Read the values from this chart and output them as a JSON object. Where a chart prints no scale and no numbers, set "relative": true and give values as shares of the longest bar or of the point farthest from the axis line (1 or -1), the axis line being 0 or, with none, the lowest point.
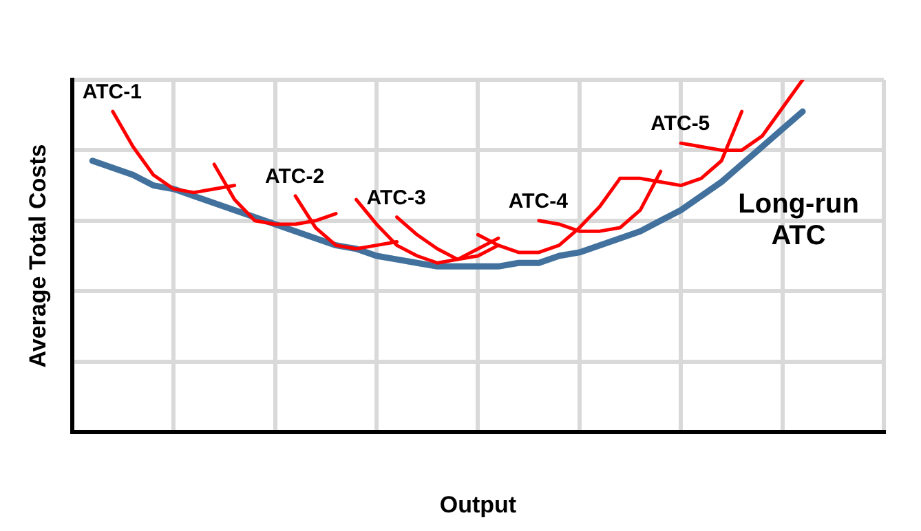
{
  "chart_data": {
    "type": "line",
    "relative": true,
    "xlabel": "Output",
    "ylabel": "Average Total Costs",
    "grid": true,
    "legend": false,
    "marker": "none",
    "line_style": "solid",
    "categories": [
      null,
      null,
      null,
      null,
      null,
      null,
      null,
      null,
      null,
      null,
      null,
      null,
      null,
      null,
      null,
      null,
      null,
      null,
      null,
      null,
      null,
      null,
      null,
      null,
      null,
      null,
      null,
      null,
      null,
      null,
      null,
      null,
      null,
      null,
      null,
      null,
      null,
      null,
      null,
      null,
      null
    ],
    "series": [
      {
        "name": "Long-run ATC",
        "color": "#41719c",
        "values": [
          null,
          0.77,
          0.75,
          0.73,
          0.7,
          0.69,
          0.67,
          0.65,
          0.63,
          0.61,
          0.59,
          0.57,
          0.55,
          0.53,
          0.52,
          0.5,
          0.49,
          0.48,
          0.47,
          0.47,
          0.47,
          0.47,
          0.48,
          0.48,
          0.5,
          0.51,
          0.53,
          0.55,
          0.57,
          0.6,
          0.63,
          0.67,
          0.71,
          0.76,
          0.81,
          0.86,
          0.91,
          null,
          null,
          null,
          null
        ]
      },
      {
        "name": "ATC-1",
        "color": "#ff0000",
        "values": [
          null,
          null,
          0.91,
          0.81,
          0.73,
          0.69,
          0.68,
          0.69,
          0.7,
          null,
          null,
          null,
          null,
          null,
          null,
          null,
          null,
          null,
          null,
          null,
          null,
          null,
          null,
          null,
          null,
          null,
          null,
          null,
          null,
          null,
          null,
          null,
          null,
          null,
          null,
          null,
          null,
          null,
          null,
          null,
          null
        ]
      },
      {
        "color": "#ff0000",
        "values": [
          null,
          null,
          null,
          null,
          null,
          null,
          null,
          0.76,
          0.66,
          0.6,
          0.59,
          0.59,
          0.6,
          0.62,
          null,
          null,
          null,
          null,
          null,
          null,
          null,
          null,
          null,
          null,
          null,
          null,
          null,
          null,
          null,
          null,
          null,
          null,
          null,
          null,
          null,
          null,
          null,
          null,
          null,
          null,
          null
        ]
      },
      {
        "name": "ATC-2",
        "color": "#ff0000",
        "values": [
          null,
          null,
          null,
          null,
          null,
          null,
          null,
          null,
          null,
          null,
          null,
          0.67,
          0.58,
          0.53,
          0.52,
          0.53,
          0.54,
          null,
          null,
          null,
          null,
          null,
          null,
          null,
          null,
          null,
          null,
          null,
          null,
          null,
          null,
          null,
          null,
          null,
          null,
          null,
          null,
          null,
          null,
          null,
          null
        ]
      },
      {
        "color": "#ff0000",
        "values": [
          null,
          null,
          null,
          null,
          null,
          null,
          null,
          null,
          null,
          null,
          null,
          null,
          null,
          null,
          0.66,
          0.59,
          0.53,
          0.5,
          0.48,
          0.49,
          0.52,
          0.55,
          null,
          null,
          null,
          null,
          null,
          null,
          null,
          null,
          null,
          null,
          null,
          null,
          null,
          null,
          null,
          null,
          null,
          null,
          null
        ]
      },
      {
        "name": "ATC-3",
        "color": "#ff0000",
        "values": [
          null,
          null,
          null,
          null,
          null,
          null,
          null,
          null,
          null,
          null,
          null,
          null,
          null,
          null,
          null,
          null,
          0.61,
          0.56,
          0.52,
          0.49,
          0.5,
          0.53,
          null,
          null,
          null,
          null,
          null,
          null,
          null,
          null,
          null,
          null,
          null,
          null,
          null,
          null,
          null,
          null,
          null,
          null,
          null
        ]
      },
      {
        "color": "#ff0000",
        "values": [
          null,
          null,
          null,
          null,
          null,
          null,
          null,
          null,
          null,
          null,
          null,
          null,
          null,
          null,
          null,
          null,
          null,
          null,
          null,
          null,
          0.56,
          0.53,
          0.51,
          0.51,
          0.53,
          0.58,
          0.64,
          0.72,
          null,
          null,
          null,
          null,
          null,
          null,
          null,
          null,
          null,
          null,
          null,
          null,
          null
        ]
      },
      {
        "name": "ATC-4",
        "color": "#ff0000",
        "values": [
          null,
          null,
          null,
          null,
          null,
          null,
          null,
          null,
          null,
          null,
          null,
          null,
          null,
          null,
          null,
          null,
          null,
          null,
          null,
          null,
          null,
          null,
          null,
          0.6,
          0.59,
          0.57,
          0.57,
          0.58,
          0.63,
          0.74,
          null,
          null,
          null,
          null,
          null,
          null,
          null,
          null,
          null,
          null,
          null
        ]
      },
      {
        "color": "#ff0000",
        "values": [
          null,
          null,
          null,
          null,
          null,
          null,
          null,
          null,
          null,
          null,
          null,
          null,
          null,
          null,
          null,
          null,
          null,
          null,
          null,
          null,
          null,
          null,
          null,
          null,
          null,
          null,
          null,
          0.72,
          0.72,
          0.71,
          0.7,
          0.72,
          0.77,
          0.91,
          null,
          null,
          null,
          null,
          null,
          null,
          null
        ]
      },
      {
        "name": "ATC-5",
        "color": "#ff0000",
        "values": [
          null,
          null,
          null,
          null,
          null,
          null,
          null,
          null,
          null,
          null,
          null,
          null,
          null,
          null,
          null,
          null,
          null,
          null,
          null,
          null,
          null,
          null,
          null,
          null,
          null,
          null,
          null,
          null,
          null,
          null,
          0.82,
          0.81,
          0.8,
          0.8,
          0.84,
          0.92,
          1.0,
          null,
          null,
          null,
          null
        ]
      }
    ]
  }
}
